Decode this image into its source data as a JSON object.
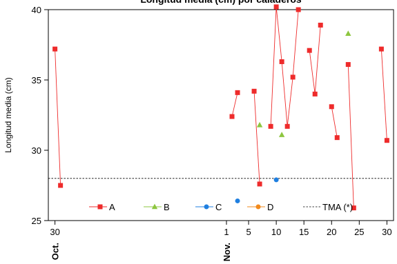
{
  "chart_data": {
    "type": "scatter",
    "title": "Longitud media (cm) por caladeros",
    "ylabel": "Longitud media (cm)",
    "xlabel": "",
    "xlim": [
      -31.2,
      31.2
    ],
    "ylim": [
      25,
      40
    ],
    "x_ticks": [
      {
        "x": -30,
        "label": "30"
      },
      {
        "x": 1,
        "label": "1"
      },
      {
        "x": 5,
        "label": "5"
      },
      {
        "x": 10,
        "label": "10"
      },
      {
        "x": 15,
        "label": "15"
      },
      {
        "x": 20,
        "label": "20"
      },
      {
        "x": 25,
        "label": "25"
      },
      {
        "x": 30,
        "label": "30"
      }
    ],
    "month_labels": [
      {
        "x": -30,
        "label": "Oct."
      },
      {
        "x": 1,
        "label": "Nov."
      }
    ],
    "y_ticks": [
      25,
      30,
      35,
      40
    ],
    "reference_line": {
      "name": "TMA (*)",
      "y": 28,
      "style": "dashed",
      "color": "#000000"
    },
    "series": [
      {
        "name": "A",
        "color": "#ee2b2b",
        "marker": "square",
        "connected": true,
        "segments": [
          [
            [
              -30,
              37.2
            ],
            [
              -29,
              27.5
            ]
          ],
          [
            [
              2,
              32.4
            ],
            [
              3,
              34.1
            ]
          ],
          [
            [
              6,
              34.2
            ],
            [
              7,
              27.6
            ]
          ],
          [
            [
              9,
              31.7
            ],
            [
              10,
              40.2
            ],
            [
              11,
              36.3
            ],
            [
              12,
              31.7
            ],
            [
              13,
              35.2
            ],
            [
              14,
              40.0
            ]
          ],
          [
            [
              16,
              37.1
            ],
            [
              17,
              34.0
            ],
            [
              18,
              38.9
            ]
          ],
          [
            [
              20,
              33.1
            ],
            [
              21,
              30.9
            ]
          ],
          [
            [
              23,
              36.1
            ],
            [
              24,
              25.9
            ]
          ],
          [
            [
              29,
              37.2
            ],
            [
              30,
              30.7
            ]
          ]
        ]
      },
      {
        "name": "B",
        "color": "#8dc63f",
        "marker": "triangle",
        "connected": false,
        "points": [
          [
            7,
            31.8
          ],
          [
            11,
            31.1
          ],
          [
            23,
            38.3
          ]
        ]
      },
      {
        "name": "C",
        "color": "#1f7fe0",
        "marker": "circle",
        "connected": false,
        "points": [
          [
            3,
            26.4
          ],
          [
            10,
            27.9
          ]
        ]
      },
      {
        "name": "D",
        "color": "#f28a1c",
        "marker": "circle",
        "connected": false,
        "points": []
      }
    ],
    "legend": {
      "placement": "bottom, inside plot",
      "entries": [
        "A",
        "B",
        "C",
        "D",
        "TMA (*)"
      ]
    },
    "grid": false
  }
}
